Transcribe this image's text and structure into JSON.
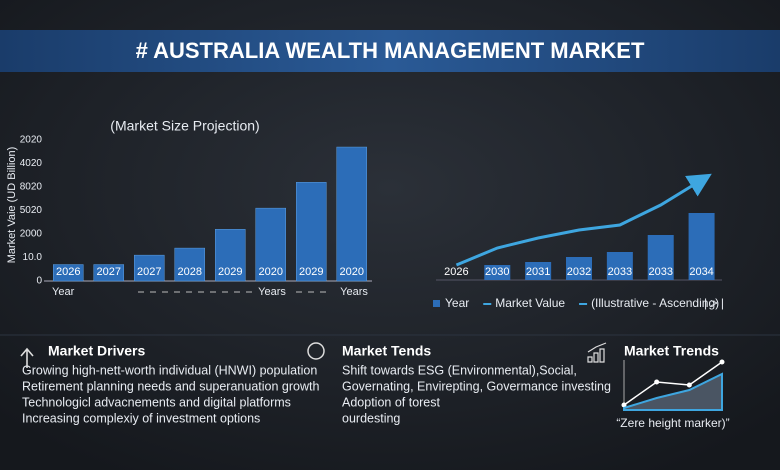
{
  "header": {
    "title": "# AUSTRALIA WEALTH MANAGEMENT MARKET"
  },
  "chart_data": [
    {
      "type": "bar",
      "subtitle": "(Market Size Projection)",
      "y_label": "Market Vaie (UD Billion)",
      "categories": [
        "2026",
        "2027",
        "2027",
        "2028",
        "2029",
        "2020",
        "2029",
        "2020"
      ],
      "values": [
        0.7,
        0.7,
        1.1,
        1.4,
        2.2,
        3.1,
        4.2,
        5.7
      ],
      "color": "#2c6db8",
      "ylim": [
        0,
        6
      ],
      "y_axis_labels": [
        "0",
        "10.0",
        "2000",
        "5020",
        "8020",
        "4020",
        "2020"
      ],
      "x_axis_labels": [
        "Year",
        "Years",
        "Years"
      ]
    },
    {
      "type": "combo",
      "categories": [
        "2026",
        "2030",
        "2031",
        "2032",
        "2033",
        "2033",
        "2034"
      ],
      "ylim": [
        0,
        110
      ],
      "series": [
        {
          "name": "Year",
          "kind": "bar",
          "color": "#2c6db8",
          "values": [
            0,
            15,
            18,
            23,
            28,
            45,
            67
          ]
        },
        {
          "name": "Market Value",
          "kind": "line",
          "color": "#3ea6e0",
          "values": [
            15,
            32,
            42,
            50,
            55,
            75,
            100
          ]
        }
      ],
      "legend_note": "(Illustrative - Ascending)",
      "legend_control": "| > |"
    },
    {
      "type": "line",
      "x": [
        0,
        1,
        2,
        3
      ],
      "xlim": [
        0,
        3
      ],
      "ylim": [
        0,
        10
      ],
      "series": [
        {
          "color": "#ffffff",
          "values": [
            1,
            5.6,
            5,
            9.6
          ]
        },
        {
          "color": "#3ea6e0",
          "values": [
            0.4,
            2.4,
            4,
            7.2
          ]
        }
      ],
      "annotation": "“Zere height marker)”"
    }
  ],
  "sections": [
    {
      "title": "Market Drivers",
      "items": [
        "Growing high-nett-worth individual (HNWI) population",
        "Retirement planning needs and superanuation growth",
        "Technologicl advacnements and digital platforms",
        "Increasing complexiy of investment options"
      ]
    },
    {
      "title": "Market Tends",
      "items": [
        "Shift towards ESG (Environmental),Social,",
        "Governating, Envirepting, Govermance investing",
        "Adoption of torest",
        "ourdesting"
      ]
    },
    {
      "title": "Market Trends",
      "items": []
    }
  ]
}
